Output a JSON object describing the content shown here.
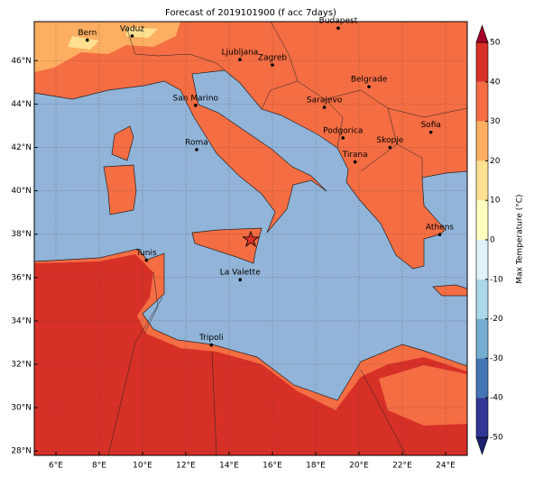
{
  "title": "Forecast of 2019101900 (f acc 7days)",
  "map": {
    "xlim": [
      5,
      25
    ],
    "ylim": [
      27.8,
      47.8
    ],
    "xticks": [
      {
        "value": 6,
        "label": "6°E"
      },
      {
        "value": 8,
        "label": "8°E"
      },
      {
        "value": 10,
        "label": "10°E"
      },
      {
        "value": 12,
        "label": "12°E"
      },
      {
        "value": 14,
        "label": "14°E"
      },
      {
        "value": 16,
        "label": "16°E"
      },
      {
        "value": 18,
        "label": "18°E"
      },
      {
        "value": 20,
        "label": "20°E"
      },
      {
        "value": 22,
        "label": "22°E"
      },
      {
        "value": 24,
        "label": "24°E"
      }
    ],
    "yticks": [
      {
        "value": 28,
        "label": "28°N"
      },
      {
        "value": 30,
        "label": "30°N"
      },
      {
        "value": 32,
        "label": "32°N"
      },
      {
        "value": 34,
        "label": "34°N"
      },
      {
        "value": 36,
        "label": "36°N"
      },
      {
        "value": 38,
        "label": "38°N"
      },
      {
        "value": 40,
        "label": "40°N"
      },
      {
        "value": 42,
        "label": "42°N"
      },
      {
        "value": 44,
        "label": "44°N"
      },
      {
        "value": 46,
        "label": "46°N"
      }
    ],
    "cities": [
      {
        "name": "Bern",
        "lon": 7.45,
        "lat": 46.95
      },
      {
        "name": "Vaduz",
        "lon": 9.52,
        "lat": 47.14
      },
      {
        "name": "Budapest",
        "lon": 19.04,
        "lat": 47.5
      },
      {
        "name": "Ljubljana",
        "lon": 14.5,
        "lat": 46.05
      },
      {
        "name": "Zagreb",
        "lon": 16.0,
        "lat": 45.8
      },
      {
        "name": "Belgrade",
        "lon": 20.46,
        "lat": 44.8
      },
      {
        "name": "San Marino",
        "lon": 12.45,
        "lat": 43.94
      },
      {
        "name": "Sarajevo",
        "lon": 18.4,
        "lat": 43.85
      },
      {
        "name": "Sofia",
        "lon": 23.32,
        "lat": 42.7
      },
      {
        "name": "Roma",
        "lon": 12.5,
        "lat": 41.9
      },
      {
        "name": "Podgorica",
        "lon": 19.26,
        "lat": 42.44
      },
      {
        "name": "Skopje",
        "lon": 21.43,
        "lat": 42.0
      },
      {
        "name": "Tirana",
        "lon": 19.82,
        "lat": 41.33
      },
      {
        "name": "Athens",
        "lon": 23.73,
        "lat": 37.98
      },
      {
        "name": "Tunis",
        "lon": 10.18,
        "lat": 36.8
      },
      {
        "name": "La Valette",
        "lon": 14.51,
        "lat": 35.9
      },
      {
        "name": "Tripoli",
        "lon": 13.18,
        "lat": 32.89
      }
    ],
    "star": {
      "lon": 15.0,
      "lat": 37.75,
      "color": "#d73027"
    }
  },
  "colorbar": {
    "label": "Max Temperature (°C)",
    "lim": [
      -50,
      50
    ],
    "ticks": [
      -50,
      -40,
      -30,
      -20,
      -10,
      0,
      10,
      20,
      30,
      40,
      50
    ],
    "colors": [
      "#313695",
      "#4575b4",
      "#74add1",
      "#abd9e9",
      "#e0f3f8",
      "#ffffbf",
      "#fee090",
      "#fdae61",
      "#f46d43",
      "#d73027"
    ],
    "under_color": "#1a1f6e",
    "over_color": "#a50026"
  }
}
